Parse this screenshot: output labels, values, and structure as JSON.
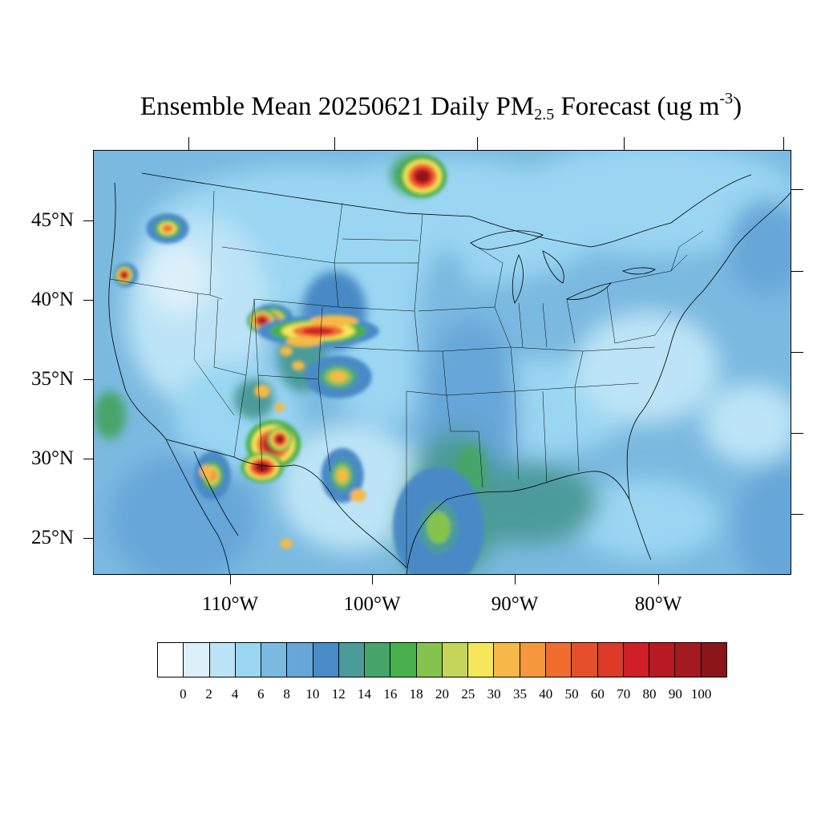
{
  "title": {
    "prefix": "Ensemble Mean 20250621 Daily PM",
    "subscript": "2.5",
    "middle": " Forecast (ug m",
    "superscript": "-3",
    "suffix": ")"
  },
  "map": {
    "region": "Continental United States",
    "projection": "lambert-conformal",
    "lat_labels": [
      "45°N",
      "40°N",
      "35°N",
      "30°N",
      "25°N"
    ],
    "lon_labels": [
      "110°W",
      "100°W",
      "90°W",
      "80°W"
    ],
    "background_level_color": "#92cdeb"
  },
  "colorbar": {
    "levels": [
      "0",
      "2",
      "4",
      "6",
      "8",
      "10",
      "12",
      "14",
      "16",
      "18",
      "20",
      "25",
      "30",
      "35",
      "40",
      "50",
      "60",
      "70",
      "80",
      "90",
      "100"
    ],
    "colors": [
      "#ffffff",
      "#dcf0fa",
      "#bce4f6",
      "#9ad6f2",
      "#7ab9e0",
      "#66a6d8",
      "#4a8ac6",
      "#4b9b9a",
      "#47a56a",
      "#47b04c",
      "#84c44e",
      "#c4d55a",
      "#f5e65a",
      "#f6b947",
      "#f6973e",
      "#f26c30",
      "#e5502a",
      "#dd3a27",
      "#d11f28",
      "#b81b24",
      "#a31b20",
      "#8b1619"
    ]
  },
  "hotspots": [
    {
      "name": "washington-fire",
      "level": "40"
    },
    {
      "name": "oregon-fire",
      "level": "35"
    },
    {
      "name": "nw-california-fire",
      "level": "100"
    },
    {
      "name": "utah-fire-1",
      "level": "60"
    },
    {
      "name": "utah-fire-2",
      "level": "90"
    },
    {
      "name": "colorado-plume",
      "level": "70"
    },
    {
      "name": "arizona-fire",
      "level": "100"
    },
    {
      "name": "new-mexico-fire",
      "level": "100"
    },
    {
      "name": "new-mexico-fire-2",
      "level": "100"
    },
    {
      "name": "manitoba-fire",
      "level": "100"
    },
    {
      "name": "texas-panhandle",
      "level": "30"
    },
    {
      "name": "west-texas",
      "level": "30"
    },
    {
      "name": "baja-fire",
      "level": "35"
    },
    {
      "name": "gulf-coast-texas",
      "level": "18"
    }
  ]
}
